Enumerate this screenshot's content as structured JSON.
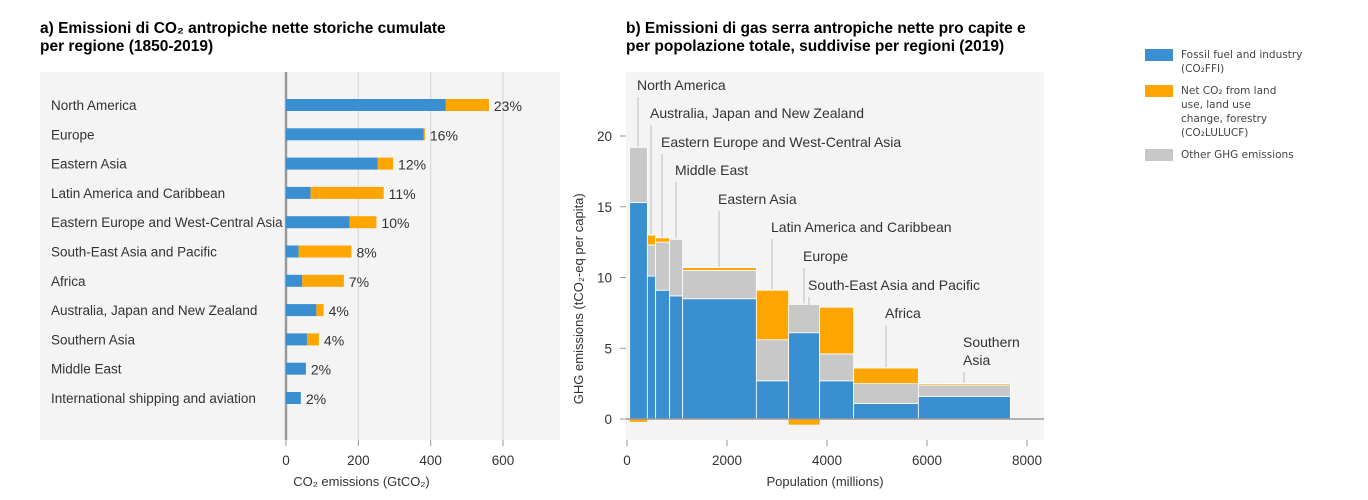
{
  "colors": {
    "ffi": "#3a8fd0",
    "lulucf": "#ffa500",
    "other": "#c8c8c8",
    "background": "#f4f4f4"
  },
  "legend": {
    "ffi": [
      "Fossil fuel and industry",
      "(CO₂FFI)"
    ],
    "lulucf": [
      "Net CO₂ from land",
      "use, land use",
      "change, forestry",
      "(CO₂LULUCF)"
    ],
    "other": [
      "Other GHG emissions"
    ]
  },
  "chart_data": [
    {
      "type": "bar",
      "orientation": "horizontal",
      "stacked": true,
      "title": "a) Emissioni di CO₂ antropiche nette storiche cumulate per regione (1850-2019)",
      "title_lines": [
        "a) Emissioni di CO₂ antropiche nette storiche cumulate",
        "per regione (1850-2019)"
      ],
      "xlabel": "CO₂ emissions (GtCO₂)",
      "xlim": [
        0,
        760
      ],
      "xticks": [
        0,
        200,
        400,
        600
      ],
      "grid": true,
      "categories": [
        "North America",
        "Europe",
        "Eastern Asia",
        "Latin America and Caribbean",
        "Eastern Europe and West-Central Asia",
        "South-East Asia and Pacific",
        "Africa",
        "Australia, Japan and New Zealand",
        "Southern Asia",
        "Middle East",
        "International shipping and aviation"
      ],
      "series": [
        {
          "name": "Fossil fuel and industry (CO₂FFI)",
          "values": [
            442,
            381,
            253,
            68,
            176,
            35,
            45,
            84,
            58,
            55,
            41
          ]
        },
        {
          "name": "Net CO₂ from land use, land use change, forestry (CO₂LULUCF)",
          "values": [
            119,
            3,
            43,
            202,
            74,
            146,
            115,
            20,
            33,
            0,
            0
          ]
        }
      ],
      "data_labels": [
        "23%",
        "16%",
        "12%",
        "11%",
        "10%",
        "8%",
        "7%",
        "4%",
        "4%",
        "2%",
        "2%"
      ]
    },
    {
      "type": "bar",
      "variant": "variable-width stacked",
      "title": "b) Emissioni di gas serra antropiche nette pro capite e per popolazione totale, suddivise per regioni (2019)",
      "title_lines": [
        "b) Emissioni di gas serra antropiche nette pro capite e",
        "per popolazione totale, suddivise per regioni (2019)"
      ],
      "xlabel": "Population (millions)",
      "ylabel": "GHG emissions (tCO₂-eq per capita)",
      "xlim": [
        0,
        8300
      ],
      "ylim": [
        -1.5,
        23.5
      ],
      "xticks": [
        0,
        2000,
        4000,
        6000,
        8000
      ],
      "yticks": [
        0,
        5,
        10,
        15,
        20
      ],
      "regions": [
        {
          "label": [
            "North America"
          ],
          "population": 354,
          "ffi": 15.3,
          "other": 3.9,
          "lulucf": -0.2
        },
        {
          "label": [
            "Australia, Japan and New Zealand"
          ],
          "population": 166,
          "ffi": 10.1,
          "other": 2.2,
          "lulucf": 0.7
        },
        {
          "label": [
            "Eastern Europe and West-Central Asia"
          ],
          "population": 280,
          "ffi": 9.1,
          "other": 3.4,
          "lulucf": 0.3
        },
        {
          "label": [
            "Middle East"
          ],
          "population": 260,
          "ffi": 8.7,
          "other": 4.0,
          "lulucf": 0
        },
        {
          "label": [
            "Eastern Asia"
          ],
          "population": 1474,
          "ffi": 8.5,
          "other": 2.0,
          "lulucf": 0.2
        },
        {
          "label": [
            "Latin America and Caribbean"
          ],
          "population": 646,
          "ffi": 2.7,
          "other": 2.9,
          "lulucf": 3.5
        },
        {
          "label": [
            "Europe"
          ],
          "population": 620,
          "ffi": 6.1,
          "other": 2.0,
          "lulucf": -0.4
        },
        {
          "label": [
            "South-East Asia and Pacific"
          ],
          "population": 680,
          "ffi": 2.7,
          "other": 1.9,
          "lulucf": 3.3
        },
        {
          "label": [
            "Africa"
          ],
          "population": 1294,
          "ffi": 1.1,
          "other": 1.4,
          "lulucf": 1.1
        },
        {
          "label": [
            "Southern",
            "Asia"
          ],
          "population": 1840,
          "ffi": 1.6,
          "other": 0.8,
          "lulucf": 0.1
        }
      ]
    }
  ]
}
